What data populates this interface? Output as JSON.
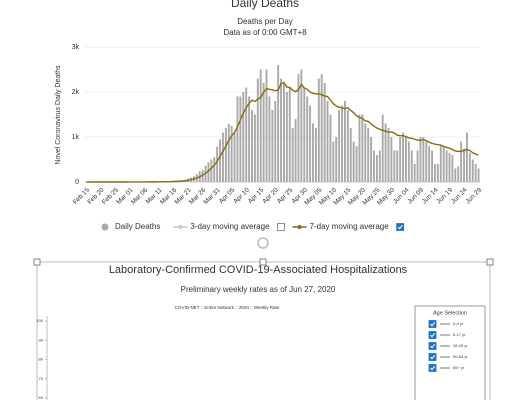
{
  "chart_data": [
    {
      "type": "bar",
      "title": "Daily Deaths",
      "subtitle": "Deaths per Day",
      "note": "Data as of 0:00 GMT+8",
      "y_label": "Novel Coronavirus Daily Deaths",
      "ylim": [
        0,
        3000
      ],
      "yticks": [
        0,
        {
          "value": 1000,
          "label": "1k"
        },
        {
          "value": 2000,
          "label": "2k"
        },
        {
          "value": 3000,
          "label": "3k"
        }
      ],
      "grid": true,
      "categories": [
        "Feb 15",
        null,
        null,
        null,
        null,
        "Feb 20",
        null,
        null,
        null,
        null,
        "Feb 25",
        null,
        null,
        null,
        null,
        "Mar 01",
        null,
        null,
        null,
        null,
        "Mar 06",
        null,
        null,
        null,
        null,
        "Mar 11",
        null,
        null,
        null,
        null,
        "Mar 16",
        null,
        null,
        null,
        null,
        "Mar 21",
        null,
        null,
        null,
        null,
        "Mar 26",
        null,
        null,
        null,
        null,
        "Mar 31",
        null,
        null,
        null,
        null,
        "Apr 05",
        null,
        null,
        null,
        null,
        "Apr 10",
        null,
        null,
        null,
        null,
        "Apr 15",
        null,
        null,
        null,
        null,
        "Apr 20",
        null,
        null,
        null,
        null,
        "Apr 25",
        null,
        null,
        null,
        null,
        "Apr 30",
        null,
        null,
        null,
        null,
        "May 05",
        null,
        null,
        null,
        null,
        "May 10",
        null,
        null,
        null,
        null,
        "May 15",
        null,
        null,
        null,
        null,
        "May 20",
        null,
        null,
        null,
        null,
        "May 25",
        null,
        null,
        null,
        null,
        "May 30",
        null,
        null,
        null,
        null,
        "Jun 04",
        null,
        null,
        null,
        null,
        "Jun 09",
        null,
        null,
        null,
        null,
        "Jun 14",
        null,
        null,
        null,
        null,
        "Jun 19",
        null,
        null,
        null,
        null,
        "Jun 24",
        null,
        null,
        null,
        null,
        "Jun 29"
      ],
      "series": [
        {
          "name": "Daily Deaths",
          "type": "bar",
          "color": "#a9a9a9",
          "values": [
            0,
            0,
            0,
            0,
            0,
            0,
            0,
            0,
            0,
            0,
            0,
            0,
            0,
            0,
            0,
            1,
            0,
            4,
            3,
            2,
            1,
            3,
            4,
            3,
            4,
            8,
            7,
            10,
            11,
            10,
            17,
            24,
            26,
            41,
            52,
            80,
            100,
            130,
            180,
            240,
            270,
            360,
            440,
            500,
            550,
            780,
            950,
            1100,
            1200,
            1300,
            1250,
            1100,
            1900,
            1900,
            2000,
            2100,
            1900,
            1600,
            1500,
            2300,
            2500,
            2200,
            2500,
            1900,
            1600,
            1800,
            2600,
            2300,
            2200,
            2000,
            2100,
            1200,
            1400,
            2400,
            2500,
            2100,
            1900,
            1700,
            1300,
            1200,
            2300,
            2400,
            2200,
            1800,
            1500,
            900,
            1000,
            1600,
            1700,
            1800,
            1600,
            1200,
            900,
            800,
            1500,
            1500,
            1300,
            1200,
            1000,
            700,
            600,
            700,
            1500,
            1300,
            1200,
            1000,
            700,
            700,
            1000,
            1100,
            1000,
            900,
            700,
            400,
            700,
            1000,
            1000,
            900,
            800,
            700,
            400,
            400,
            800,
            800,
            700,
            650,
            600,
            300,
            350,
            900,
            750,
            1100,
            650,
            500,
            400,
            300
          ]
        },
        {
          "name": "3-day moving average",
          "type": "line",
          "color": "#c8c8c8",
          "checked": false
        },
        {
          "name": "7-day moving average",
          "type": "line",
          "color": "#8b6914",
          "checked": true,
          "values": [
            0,
            0,
            0,
            0,
            0,
            0,
            0,
            0,
            0,
            0,
            0,
            0,
            0,
            0,
            0,
            1,
            1,
            1,
            2,
            2,
            2,
            2,
            3,
            3,
            3,
            4,
            5,
            6,
            7,
            8,
            11,
            14,
            17,
            22,
            28,
            38,
            51,
            67,
            88,
            117,
            150,
            193,
            245,
            306,
            371,
            463,
            570,
            680,
            800,
            920,
            1030,
            1100,
            1230,
            1380,
            1530,
            1650,
            1750,
            1820,
            1790,
            1840,
            1880,
            1990,
            2080,
            2060,
            2050,
            2030,
            2040,
            2190,
            2210,
            2110,
            2100,
            2040,
            2010,
            2050,
            2170,
            2090,
            2060,
            2000,
            1970,
            1960,
            1960,
            1940,
            1910,
            1900,
            1820,
            1740,
            1690,
            1660,
            1650,
            1630,
            1650,
            1590,
            1540,
            1470,
            1440,
            1410,
            1360,
            1350,
            1290,
            1240,
            1200,
            1170,
            1150,
            1130,
            1110,
            1110,
            1090,
            1040,
            1030,
            1030,
            1010,
            980,
            970,
            950,
            930,
            930,
            940,
            920,
            880,
            860,
            840,
            830,
            820,
            790,
            770,
            750,
            720,
            690,
            680,
            680,
            700,
            720,
            700,
            650,
            620,
            600
          ]
        }
      ]
    },
    {
      "type": "line",
      "title": "Laboratory-Confirmed COVID-19-Associated Hospitalizations",
      "subtitle": "Preliminary weekly rates as of Jun 27, 2020",
      "caption": "COVID-NET :: Entire Network :: 2020 :: Weekly Rate",
      "ylim": [
        60,
        100
      ],
      "yticks": [
        100,
        90,
        80,
        70,
        60
      ],
      "legend_title": "Age Selection",
      "series": [
        {
          "name": "0-4 yr",
          "checked": true
        },
        {
          "name": "5-17 yr",
          "checked": true
        },
        {
          "name": "18-49 yr",
          "checked": true
        },
        {
          "name": "50-64 yr",
          "checked": true
        },
        {
          "name": "65+ yr",
          "checked": true
        }
      ]
    }
  ]
}
